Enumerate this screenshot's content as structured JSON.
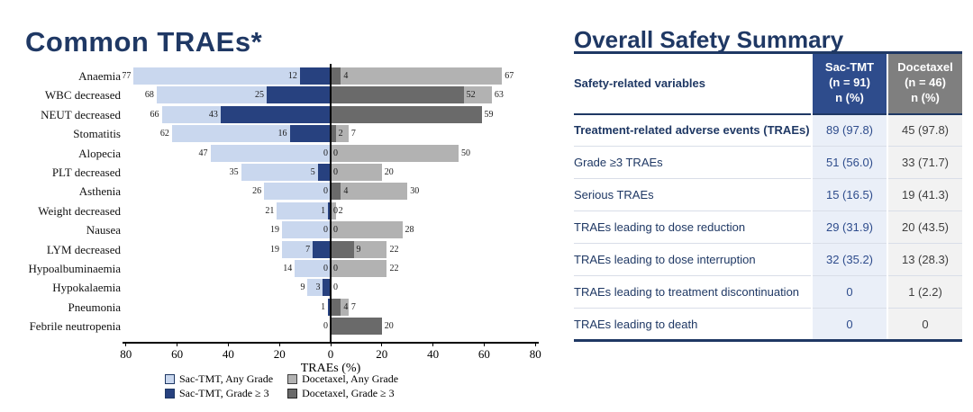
{
  "left_title": "Common TRAEs*",
  "right_title": "Overall Safety Summary",
  "colors": {
    "title_navy": "#1f3864",
    "sac_any": "#c9d7ee",
    "sac_g3": "#27417f",
    "doc_any": "#b2b2b2",
    "doc_g3": "#6a6a6a",
    "header_sac_bg": "#2e4c8c",
    "header_doc_bg": "#7f7f7f",
    "col_sac_bg": "#eaeff8",
    "col_doc_bg": "#f2f2f2",
    "axis": "#000000"
  },
  "chart_data": [
    {
      "type": "bar",
      "variant": "diverging_tornado",
      "title": "Common TRAEs*",
      "xlabel": "TRAEs (%)",
      "axis_ticks": [
        80,
        60,
        40,
        20,
        0,
        20,
        40,
        60,
        80
      ],
      "x_range_each_side": [
        0,
        80
      ],
      "grid": false,
      "legend_position": "bottom",
      "legend": [
        {
          "label": "Sac-TMT, Any Grade",
          "swatch": "#c9d7ee",
          "border": "#1f3864"
        },
        {
          "label": "Docetaxel, Any Grade",
          "swatch": "#b2b2b2",
          "border": "#404040"
        },
        {
          "label": "Sac-TMT, Grade ≥ 3",
          "swatch": "#27417f",
          "border": "#1f3864"
        },
        {
          "label": "Docetaxel, Grade ≥ 3",
          "swatch": "#6a6a6a",
          "border": "#262626"
        }
      ],
      "rows": [
        {
          "category": "Anaemia",
          "sac_any": 77,
          "sac_g3": 12,
          "doc_g3": 4,
          "doc_any": 67,
          "labels": {
            "sac_any": "77",
            "sac_g3": "12",
            "doc_g3": "4",
            "doc_any": "67"
          }
        },
        {
          "category": "WBC decreased",
          "sac_any": 68,
          "sac_g3": 25,
          "doc_g3": 52,
          "doc_any": 63,
          "labels": {
            "sac_any": "68",
            "sac_g3": "25",
            "doc_g3": "52",
            "doc_any": "63"
          }
        },
        {
          "category": "NEUT decreased",
          "sac_any": 66,
          "sac_g3": 43,
          "doc_g3": 59,
          "doc_any": 59,
          "labels": {
            "sac_any": "66",
            "sac_g3": "43",
            "doc_g3": null,
            "doc_any": "59"
          }
        },
        {
          "category": "Stomatitis",
          "sac_any": 62,
          "sac_g3": 16,
          "doc_g3": 2,
          "doc_any": 7,
          "labels": {
            "sac_any": "62",
            "sac_g3": "16",
            "doc_g3": "2",
            "doc_any": "7"
          }
        },
        {
          "category": "Alopecia",
          "sac_any": 47,
          "sac_g3": 0,
          "doc_g3": 0,
          "doc_any": 50,
          "labels": {
            "sac_any": "47",
            "sac_g3": "0",
            "doc_g3": "0",
            "doc_any": "50"
          }
        },
        {
          "category": "PLT decreased",
          "sac_any": 35,
          "sac_g3": 5,
          "doc_g3": 0,
          "doc_any": 20,
          "labels": {
            "sac_any": "35",
            "sac_g3": "5",
            "doc_g3": "0",
            "doc_any": "20"
          }
        },
        {
          "category": "Asthenia",
          "sac_any": 26,
          "sac_g3": 0,
          "doc_g3": 4,
          "doc_any": 30,
          "labels": {
            "sac_any": "26",
            "sac_g3": "0",
            "doc_g3": "4",
            "doc_any": "30"
          }
        },
        {
          "category": "Weight decreased",
          "sac_any": 21,
          "sac_g3": 1,
          "doc_g3": 0,
          "doc_any": 2,
          "labels": {
            "sac_any": "21",
            "sac_g3": "1",
            "doc_g3": "0",
            "doc_any": "2"
          }
        },
        {
          "category": "Nausea",
          "sac_any": 19,
          "sac_g3": 0,
          "doc_g3": 0,
          "doc_any": 28,
          "labels": {
            "sac_any": "19",
            "sac_g3": "0",
            "doc_g3": "0",
            "doc_any": "28"
          }
        },
        {
          "category": "LYM decreased",
          "sac_any": 19,
          "sac_g3": 7,
          "doc_g3": 9,
          "doc_any": 22,
          "labels": {
            "sac_any": "19",
            "sac_g3": "7",
            "doc_g3": "9",
            "doc_any": "22"
          }
        },
        {
          "category": "Hypoalbuminaemia",
          "sac_any": 14,
          "sac_g3": 0,
          "doc_g3": 0,
          "doc_any": 22,
          "labels": {
            "sac_any": "14",
            "sac_g3": "0",
            "doc_g3": "0",
            "doc_any": "22"
          }
        },
        {
          "category": "Hypokalaemia",
          "sac_any": 9,
          "sac_g3": 3,
          "doc_g3": 0,
          "doc_any": 0,
          "labels": {
            "sac_any": "9",
            "sac_g3": "3",
            "doc_g3": null,
            "doc_any": "0"
          }
        },
        {
          "category": "Pneumonia",
          "sac_any": 1,
          "sac_g3": 1,
          "doc_g3": 4,
          "doc_any": 7,
          "labels": {
            "sac_any": "1",
            "sac_g3": null,
            "doc_g3": "4",
            "doc_any": "7"
          }
        },
        {
          "category": "Febrile neutropenia",
          "sac_any": 0,
          "sac_g3": 0,
          "doc_g3": 20,
          "doc_any": 20,
          "labels": {
            "sac_any": "0",
            "sac_g3": null,
            "doc_g3": null,
            "doc_any": "20"
          }
        }
      ]
    },
    {
      "type": "table",
      "title": "Overall Safety Summary",
      "header": {
        "col1": "Safety-related variables",
        "col2_lines": [
          "Sac-TMT",
          "(n = 91)",
          "n (%)"
        ],
        "col3_lines": [
          "Docetaxel",
          "(n = 46)",
          "n (%)"
        ]
      },
      "rows": [
        {
          "label": "Treatment-related adverse events (TRAEs)",
          "sac": "89 (97.8)",
          "doc": "45 (97.8)",
          "bold": true
        },
        {
          "label": "Grade ≥3 TRAEs",
          "sac": "51 (56.0)",
          "doc": "33 (71.7)",
          "bold": false
        },
        {
          "label": "Serious TRAEs",
          "sac": "15 (16.5)",
          "doc": "19 (41.3)",
          "bold": false
        },
        {
          "label": "TRAEs leading to dose reduction",
          "sac": "29 (31.9)",
          "doc": "20 (43.5)",
          "bold": false
        },
        {
          "label": "TRAEs leading to dose interruption",
          "sac": "32 (35.2)",
          "doc": "13 (28.3)",
          "bold": false
        },
        {
          "label": "TRAEs leading to treatment discontinuation",
          "sac": "0",
          "doc": "1 (2.2)",
          "bold": false
        },
        {
          "label": "TRAEs leading to death",
          "sac": "0",
          "doc": "0",
          "bold": false
        }
      ]
    }
  ]
}
